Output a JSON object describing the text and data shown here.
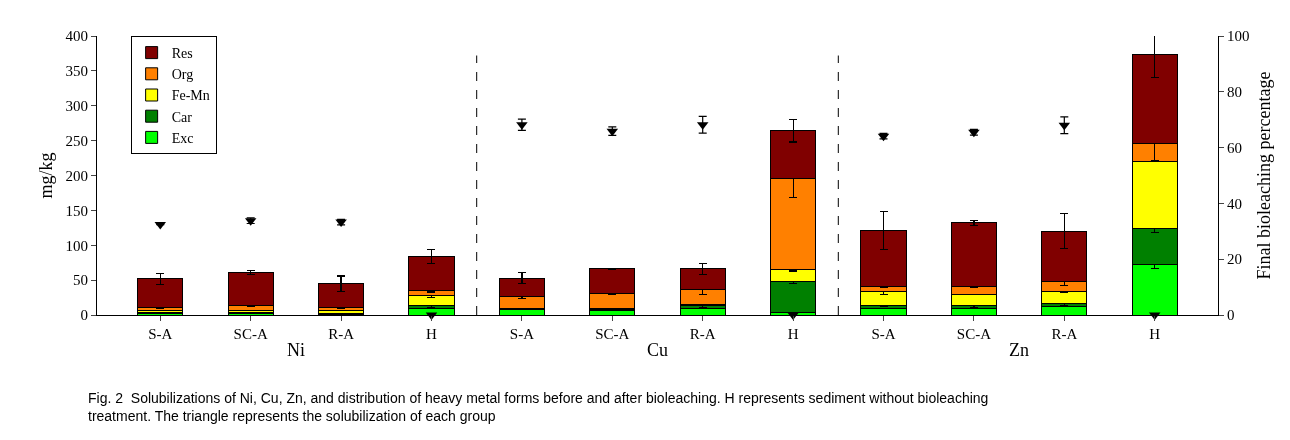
{
  "chart_data": {
    "type": "bar",
    "stacked": true,
    "categories": [
      "S-A",
      "SC-A",
      "R-A",
      "H",
      "S-A",
      "SC-A",
      "R-A",
      "H",
      "S-A",
      "SC-A",
      "R-A",
      "H"
    ],
    "ylabel": "mg/kg",
    "y2label": "Final bioleaching percentage",
    "ylim": [
      0,
      400
    ],
    "yticks": [
      0,
      50,
      100,
      150,
      200,
      250,
      300,
      350,
      400
    ],
    "y2lim": [
      0,
      100
    ],
    "y2ticks": [
      0,
      20,
      40,
      60,
      80,
      100
    ],
    "legend": "top left",
    "series": [
      {
        "name": "Exc",
        "color": "#00ff00",
        "values": [
          2,
          2,
          1,
          9,
          8,
          7,
          10,
          4,
          10,
          9,
          12,
          72
        ],
        "errors": [
          null,
          null,
          null,
          null,
          null,
          null,
          null,
          null,
          null,
          null,
          null,
          5
        ]
      },
      {
        "name": "Car",
        "color": "#008000",
        "values": [
          1,
          1,
          1,
          5,
          1,
          1,
          3,
          44,
          4,
          4,
          4,
          52
        ],
        "errors": [
          null,
          null,
          null,
          3,
          1,
          1,
          2,
          3,
          2,
          3,
          2,
          6
        ]
      },
      {
        "name": "Fe-Mn",
        "color": "#ffff00",
        "values": [
          3,
          3,
          4,
          14,
          1,
          1,
          2,
          17,
          19,
          17,
          17,
          96
        ],
        "errors": [
          null,
          null,
          null,
          3,
          null,
          null,
          null,
          2,
          4,
          1,
          1,
          null
        ]
      },
      {
        "name": "Org",
        "color": "#ff8000",
        "values": [
          5,
          7,
          5,
          7,
          16,
          22,
          22,
          130,
          8,
          11,
          15,
          26
        ],
        "errors": [
          2,
          1,
          2,
          2,
          2,
          2,
          8,
          27,
          2,
          1,
          6,
          24
        ]
      },
      {
        "name": "Res",
        "color": "#800000",
        "values": [
          41,
          48,
          34,
          49,
          27,
          35,
          29,
          69,
          80,
          91,
          72,
          128
        ],
        "errors": [
          8,
          3,
          11,
          10,
          8,
          1,
          8,
          16,
          27,
          4,
          25,
          34
        ]
      },
      {
        "type": "scatter",
        "axis": "y2",
        "color": "#000000",
        "marker": "triangle",
        "values": [
          32.4,
          33.8,
          33.3,
          0,
          68.2,
          65.9,
          68.2,
          0,
          64.1,
          65.5,
          68,
          0
        ],
        "errors": [
          null,
          1,
          1,
          null,
          2,
          1.5,
          3,
          null,
          1,
          1,
          3,
          null
        ]
      }
    ],
    "annotations": [
      "Ni",
      "Cu",
      "Zn",
      "Fig. 2  Solubilizations of Ni, Cu, Zn, and distribution of heavy metal forms before and after bioleaching. H represents sediment without bioleaching treatment. The triangle represents the solubilization of each group"
    ]
  }
}
